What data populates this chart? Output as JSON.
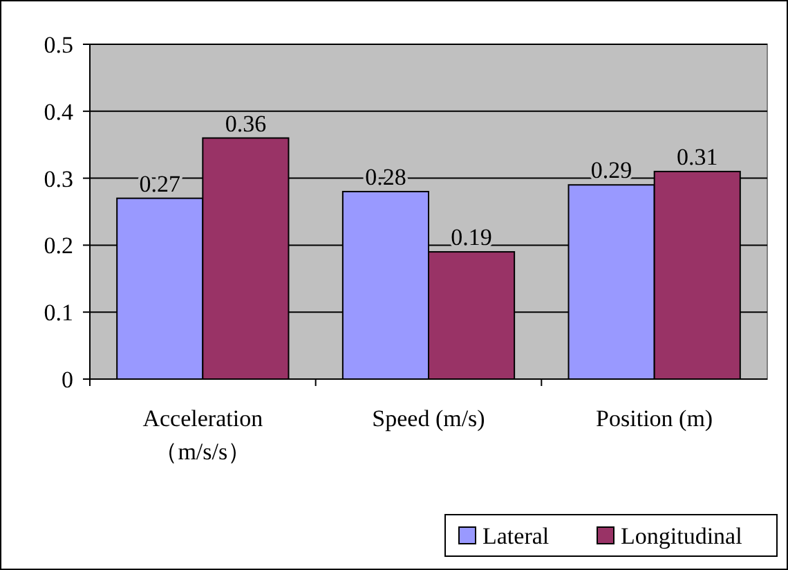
{
  "chart_data": {
    "type": "bar",
    "categories": [
      "Acceleration\n（m/s/s）",
      "Speed (m/s)",
      "Position (m)"
    ],
    "series": [
      {
        "name": "Lateral",
        "color": "#9999ff",
        "values": [
          0.27,
          0.28,
          0.29
        ]
      },
      {
        "name": "Longitudinal",
        "color": "#993366",
        "values": [
          0.36,
          0.19,
          0.31
        ]
      }
    ],
    "ylim": [
      0,
      0.5
    ],
    "yticks": [
      0,
      0.1,
      0.2,
      0.3,
      0.4,
      0.5
    ],
    "grid": "y",
    "legend": "bottom right",
    "data_labels": true
  }
}
